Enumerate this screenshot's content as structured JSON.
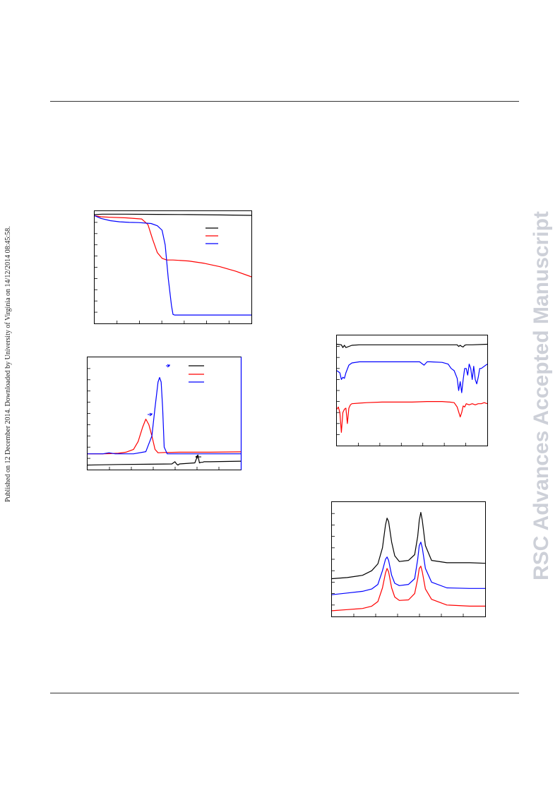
{
  "sidebar": {
    "published_note": "Published on 12 December 2014. Downloaded by University of Virginia on 14/12/2014 08:45:58."
  },
  "watermark": {
    "text": "RSC Advances Accepted Manuscript",
    "color": "#cdd0d8"
  },
  "colors": {
    "black": "#000000",
    "red": "#ff0000",
    "blue": "#0000ff"
  },
  "chart_data": [
    {
      "type": "line",
      "panel": "tga",
      "title": "",
      "xlabel": "",
      "ylabel": "",
      "xlim": [
        0,
        100
      ],
      "ylim": [
        0,
        100
      ],
      "legend": "top-right",
      "series": [
        {
          "color": "#000000",
          "x": [
            0,
            5,
            20,
            40,
            60,
            80,
            100
          ],
          "y": [
            97,
            97.3,
            97.3,
            97.1,
            96.9,
            96.6,
            96.2
          ]
        },
        {
          "color": "#ff0000",
          "x": [
            0,
            4,
            10,
            20,
            30,
            34,
            37,
            40,
            43,
            46,
            50,
            60,
            70,
            80,
            90,
            100
          ],
          "y": [
            96,
            95,
            94.5,
            94,
            93,
            88,
            75,
            63,
            58,
            56.5,
            56.5,
            55.6,
            53.5,
            50.5,
            46.5,
            41.5
          ]
        },
        {
          "color": "#0000ff",
          "x": [
            0,
            4,
            10,
            16,
            22,
            28,
            36,
            40,
            43,
            45,
            47,
            49,
            50,
            51,
            55,
            70,
            100
          ],
          "y": [
            96,
            93.5,
            91.5,
            90.5,
            90,
            89.8,
            89,
            87,
            83,
            70,
            40,
            16,
            8,
            7.5,
            7.5,
            7.5,
            7.5
          ]
        }
      ]
    },
    {
      "type": "line",
      "panel": "dtg",
      "title": "",
      "xlabel": "",
      "ylabel": "",
      "xlim": [
        0,
        100
      ],
      "ylim": [
        0,
        100
      ],
      "legend": "top-right",
      "series": [
        {
          "color": "#000000",
          "x": [
            0,
            20,
            40,
            55,
            57,
            58,
            59,
            60,
            70,
            72,
            73,
            74,
            75,
            76,
            80,
            100
          ],
          "y": [
            4,
            4.5,
            4.8,
            5,
            7,
            5,
            4,
            5,
            6,
            13,
            6,
            6.5,
            6.5,
            7,
            7,
            7.5
          ]
        },
        {
          "color": "#ff0000",
          "x": [
            0,
            10,
            15,
            20,
            25,
            30,
            33,
            36,
            38,
            40,
            42,
            44,
            46,
            50,
            60,
            80,
            100
          ],
          "y": [
            14,
            14,
            14.2,
            14.5,
            15.5,
            18,
            25,
            38,
            45,
            40,
            30,
            18,
            15,
            15.2,
            15.5,
            15.5,
            15.8
          ]
        },
        {
          "color": "#0000ff",
          "x": [
            0,
            10,
            14,
            18,
            22,
            30,
            38,
            42,
            44,
            46,
            47,
            48,
            49,
            50,
            52,
            60,
            100
          ],
          "y": [
            14,
            14,
            15,
            14,
            14,
            14,
            16,
            30,
            55,
            78,
            82,
            78,
            55,
            20,
            14,
            14,
            14
          ]
        }
      ]
    },
    {
      "type": "line",
      "panel": "ftir",
      "title": "",
      "xlabel": "",
      "ylabel": "",
      "xlim": [
        0,
        100
      ],
      "ylim": [
        0,
        100
      ],
      "legend": "none",
      "series": [
        {
          "color": "#000000",
          "x": [
            0,
            3,
            4,
            5,
            6,
            10,
            15,
            80,
            81,
            82,
            83,
            84,
            85,
            86,
            90,
            100
          ],
          "y": [
            92,
            91.5,
            89,
            91,
            89,
            91,
            91.5,
            91.5,
            90,
            91,
            90,
            89.5,
            91,
            91.5,
            91.5,
            92
          ]
        },
        {
          "color": "#0000ff",
          "x": [
            0,
            2,
            3,
            4,
            5,
            6,
            8,
            10,
            15,
            20,
            40,
            55,
            58,
            60,
            62,
            70,
            74,
            76,
            78,
            80,
            81,
            82,
            83,
            84,
            85,
            86,
            87,
            88,
            89,
            90,
            91,
            92,
            93,
            94,
            95,
            96,
            98,
            100
          ],
          "y": [
            68,
            66,
            60,
            62,
            61,
            66,
            73,
            75,
            76,
            76,
            76,
            76,
            73,
            76,
            76,
            75.5,
            74,
            70,
            68,
            61,
            50,
            58,
            48,
            60,
            70,
            70,
            64,
            74,
            70,
            60,
            72,
            60,
            56,
            62,
            70,
            70,
            72,
            74
          ]
        },
        {
          "color": "#ff0000",
          "x": [
            0,
            1,
            2,
            3,
            4,
            5,
            6,
            7,
            8,
            9,
            10,
            15,
            20,
            30,
            40,
            50,
            60,
            70,
            75,
            78,
            80,
            82,
            83,
            84,
            85,
            86,
            88,
            90,
            92,
            94,
            96,
            98,
            100
          ],
          "y": [
            33,
            35,
            30,
            12,
            30,
            33,
            34,
            20,
            34,
            37,
            38,
            38.5,
            39,
            39.5,
            39.5,
            39.5,
            40,
            40,
            39.5,
            39,
            35,
            26,
            30,
            36,
            35,
            38,
            37,
            38,
            37,
            38,
            38,
            39,
            38
          ]
        }
      ]
    },
    {
      "type": "line",
      "panel": "xrd",
      "title": "",
      "xlabel": "",
      "ylabel": "",
      "xlim": [
        0,
        100
      ],
      "ylim": [
        0,
        100
      ],
      "legend": "none",
      "series": [
        {
          "color": "#000000",
          "x": [
            0,
            10,
            20,
            26,
            30,
            33,
            35,
            36,
            37,
            39,
            41,
            44,
            50,
            54,
            56,
            57,
            58,
            59,
            61,
            65,
            75,
            90,
            100
          ],
          "y": [
            33,
            34,
            36,
            40,
            46,
            60,
            80,
            86,
            83,
            65,
            53,
            48,
            49,
            54,
            70,
            84,
            91,
            84,
            62,
            49,
            47,
            47,
            46.5
          ]
        },
        {
          "color": "#0000ff",
          "x": [
            0,
            10,
            20,
            26,
            30,
            33,
            35,
            36,
            37,
            39,
            41,
            44,
            50,
            54,
            56,
            57,
            58,
            59,
            61,
            65,
            75,
            90,
            100
          ],
          "y": [
            19,
            20.5,
            22,
            24,
            28,
            40,
            50,
            52,
            49,
            36,
            29,
            27,
            28,
            33,
            50,
            62,
            65,
            60,
            42,
            30,
            25,
            24.5,
            24.5
          ]
        },
        {
          "color": "#ff0000",
          "x": [
            0,
            10,
            20,
            26,
            30,
            33,
            35,
            36,
            37,
            39,
            41,
            44,
            50,
            54,
            56,
            57,
            58,
            59,
            61,
            65,
            75,
            90,
            100
          ],
          "y": [
            5,
            6,
            7,
            9,
            13,
            25,
            38,
            42,
            39,
            25,
            17,
            14,
            14.5,
            20,
            33,
            42,
            44,
            39,
            24,
            15,
            10,
            9,
            9
          ]
        }
      ]
    }
  ]
}
